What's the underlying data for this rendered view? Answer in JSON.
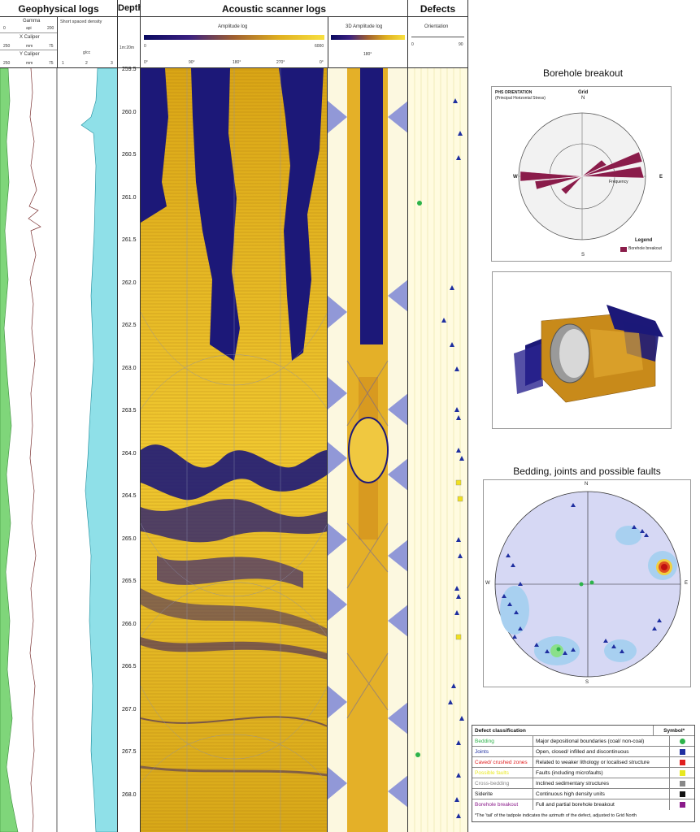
{
  "headers": {
    "geophysical": "Geophysical logs",
    "depth": "Depth",
    "acoustic": "Acoustic scanner logs",
    "defects": "Defects"
  },
  "geo_sub": {
    "gamma": "Gamma",
    "gamma_scale": [
      "0",
      "api",
      "200"
    ],
    "x_caliper": "X Caliper",
    "x_scale": [
      "250",
      "mm",
      "75"
    ],
    "y_caliper": "Y Caliper",
    "y_scale": [
      "250",
      "mm",
      "75"
    ],
    "density": "Short spaced density",
    "density_unit": "g/cc",
    "density_scale": [
      "1",
      "2",
      "3"
    ]
  },
  "depth_sub": "1m:20m",
  "acoustic_sub": {
    "amplitude": "Amplitude log",
    "amp_scale": [
      "0",
      "6000"
    ],
    "azimuth_ticks": [
      "0°",
      "90°",
      "180°",
      "270°",
      "0°"
    ],
    "amp3d": "3D Amplitude log",
    "amp3d_tick": "180°"
  },
  "defects_sub": {
    "orientation": "Orientation",
    "scale": [
      "0",
      "90"
    ]
  },
  "depth_values": [
    "259.5",
    "260.0",
    "260.5",
    "261.0",
    "261.5",
    "262.0",
    "262.5",
    "263.0",
    "263.5",
    "264.0",
    "264.5",
    "265.0",
    "265.5",
    "266.0",
    "266.5",
    "267.0",
    "267.5",
    "268.0"
  ],
  "breakout": {
    "title": "Borehole breakout",
    "subtitle": "PHS ORIENTATION",
    "subtitle2": "(Principal Horizontal Stress)",
    "grid": "Grid",
    "n": "N",
    "s": "S",
    "e": "E",
    "w": "W",
    "frequency": "Frequency",
    "legend_title": "Legend",
    "legend_item": "Borehole breakout"
  },
  "stereonet": {
    "title": "Bedding, joints and possible faults",
    "n": "N",
    "s": "S",
    "e": "E",
    "w": "W"
  },
  "legend": {
    "header_a": "Defect classification",
    "header_c": "Symbol*",
    "rows": [
      {
        "name": "Bedding",
        "desc": "Major depositional boundaries (coal/ non-coal)",
        "color": "#2db34a"
      },
      {
        "name": "Joints",
        "desc": "Open, closed/ infilled and discontinuous",
        "color": "#1f2fa0"
      },
      {
        "name": "Caved/ crushed zones",
        "desc": "Related to weaker lithology or localised structure",
        "color": "#e02020"
      },
      {
        "name": "Possible faults",
        "desc": "Faults (including microfaults)",
        "color": "#e8e820"
      },
      {
        "name": "Cross-bedding",
        "desc": "Inclined sedimentary structures",
        "color": "#888888"
      },
      {
        "name": "Siderite",
        "desc": "Continuous high density units",
        "color": "#111111"
      },
      {
        "name": "Borehole breakout",
        "desc": "Full and partial borehole breakout",
        "color": "#8a1a8a"
      }
    ],
    "footnote": "*The 'tail' of the tadpole indicates the azimuth of the defect, adjusted to Grid North"
  }
}
